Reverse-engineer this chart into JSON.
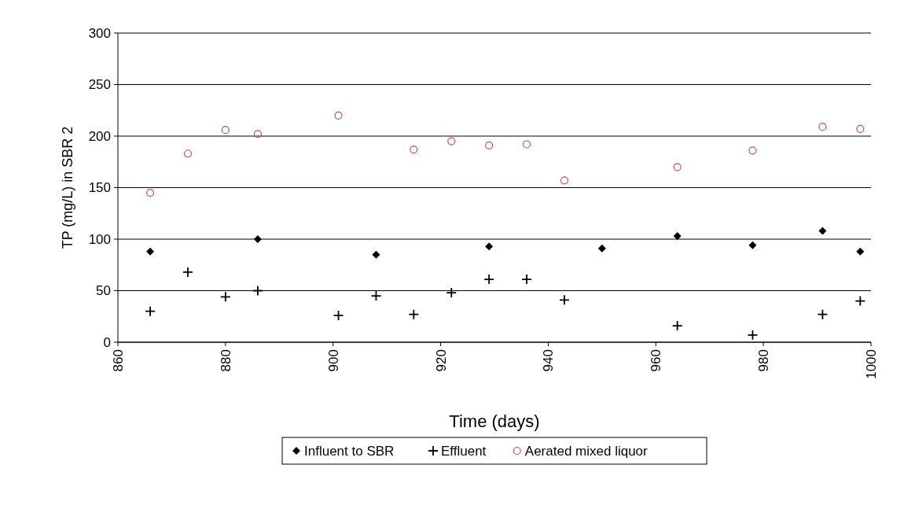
{
  "chart_data": {
    "type": "scatter",
    "xlabel": "Time (days)",
    "ylabel": "TP (mg/L) in SBR 2",
    "xlim": [
      860,
      1000
    ],
    "xticks": [
      860,
      880,
      900,
      920,
      940,
      960,
      980,
      1000
    ],
    "ylim": [
      0,
      300
    ],
    "yticks": [
      0,
      50,
      100,
      150,
      200,
      250,
      300
    ],
    "grid": "y",
    "legend": "bottom",
    "series": [
      {
        "name": "Influent to SBR",
        "color": "#000000",
        "marker": "diamond",
        "x": [
          866,
          886,
          908,
          929,
          950,
          964,
          978,
          991,
          998
        ],
        "values": [
          88,
          100,
          85,
          93,
          91,
          103,
          94,
          108,
          88
        ]
      },
      {
        "name": "Effluent",
        "color": "#000000",
        "marker": "cross",
        "x": [
          866,
          873,
          880,
          886,
          901,
          908,
          915,
          922,
          929,
          936,
          943,
          964,
          978,
          991,
          998
        ],
        "values": [
          30,
          68,
          44,
          50,
          26,
          45,
          27,
          48,
          61,
          61,
          41,
          16,
          7,
          27,
          40
        ]
      },
      {
        "name": "Aerated mixed liquor",
        "color": "#c0504d",
        "marker": "circle",
        "x": [
          866,
          873,
          880,
          886,
          901,
          915,
          922,
          929,
          936,
          943,
          964,
          978,
          991,
          998
        ],
        "values": [
          145,
          183,
          206,
          202,
          220,
          187,
          195,
          191,
          192,
          157,
          170,
          186,
          209,
          207
        ]
      }
    ]
  }
}
